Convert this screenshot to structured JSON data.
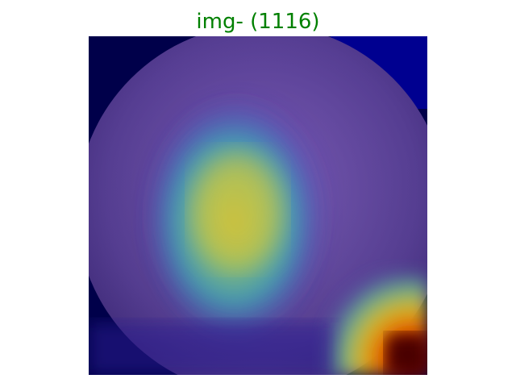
{
  "title": "img- (1116)",
  "colors": {
    "title": "#008000",
    "background": "#ffffff"
  },
  "image": {
    "description_kind": "heatmap-overlay",
    "colormap": "jet"
  }
}
